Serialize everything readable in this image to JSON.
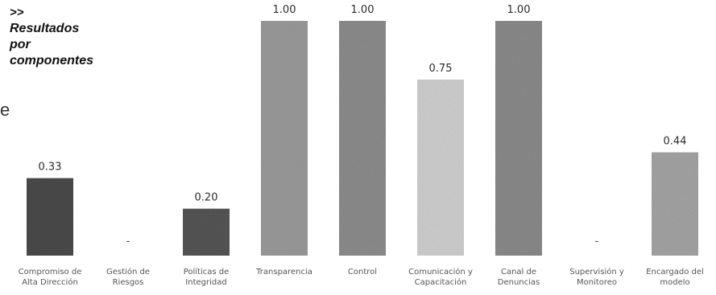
{
  "header": {
    "prefix": ">>",
    "title_lines": [
      "Resultados",
      "por",
      "componentes"
    ]
  },
  "edge_fragment": "e",
  "chart_data": {
    "type": "bar",
    "categories": [
      [
        "Compromiso de",
        "Alta Dirección"
      ],
      [
        "Gestión de",
        "Riesgos"
      ],
      [
        "Políticas de",
        "Integridad"
      ],
      [
        "Transparencia"
      ],
      [
        "Control"
      ],
      [
        "Comunicación y",
        "Capacitación"
      ],
      [
        "Canal de",
        "Denuncias"
      ],
      [
        "Supervisión y",
        "Monitoreo"
      ],
      [
        "Encargado del",
        "modelo"
      ]
    ],
    "values": [
      0.33,
      null,
      0.2,
      1.0,
      1.0,
      0.75,
      1.0,
      null,
      0.44
    ],
    "value_labels": [
      "0.33",
      "-",
      "0.20",
      "1.00",
      "1.00",
      "0.75",
      "1.00",
      "-",
      "0.44"
    ],
    "bar_colors": [
      "#4a4a4a",
      "#8a8a8a",
      "#555555",
      "#9a9a9a",
      "#8c8c8c",
      "#cfcfcf",
      "#8a8a8a",
      "#9a9a9a",
      "#a4a4a4"
    ],
    "ylim": [
      0,
      1.0
    ],
    "grid": false,
    "legend": "none"
  }
}
